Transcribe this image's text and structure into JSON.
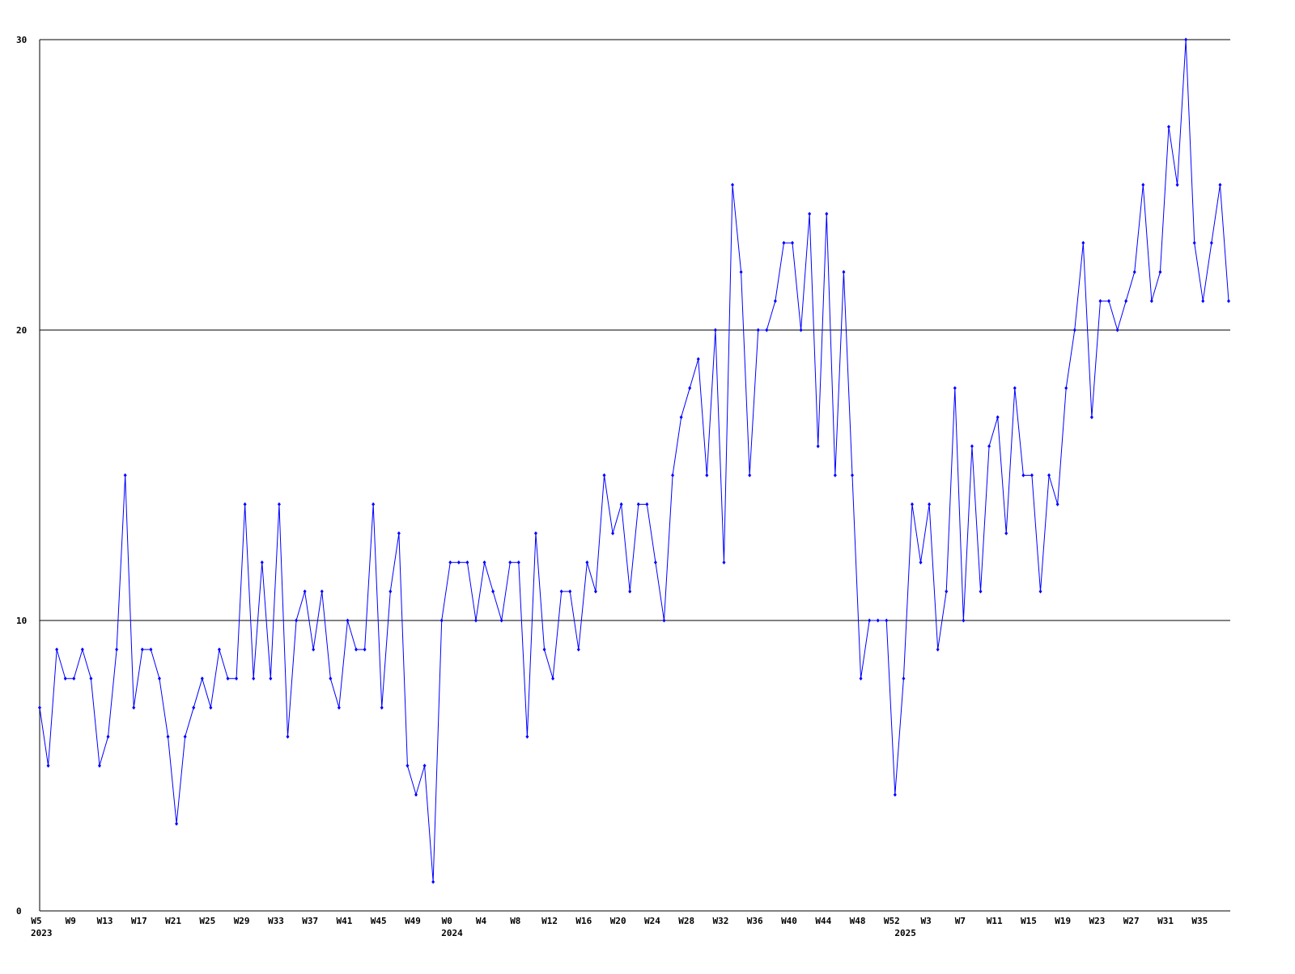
{
  "chart_data": {
    "type": "line",
    "categories": [
      "W5",
      null,
      null,
      null,
      "W9",
      null,
      null,
      null,
      "W13",
      null,
      null,
      null,
      "W17",
      null,
      null,
      null,
      "W21",
      null,
      null,
      null,
      "W25",
      null,
      null,
      null,
      "W29",
      null,
      null,
      null,
      "W33",
      null,
      null,
      null,
      "W37",
      null,
      null,
      null,
      "W41",
      null,
      null,
      null,
      "W45",
      null,
      null,
      null,
      "W49",
      null,
      null,
      null,
      "W0",
      null,
      null,
      null,
      "W4",
      null,
      null,
      null,
      "W8",
      null,
      null,
      null,
      "W12",
      null,
      null,
      null,
      "W16",
      null,
      null,
      null,
      "W20",
      null,
      null,
      null,
      "W24",
      null,
      null,
      null,
      "W28",
      null,
      null,
      null,
      "W32",
      null,
      null,
      null,
      "W36",
      null,
      null,
      null,
      "W40",
      null,
      null,
      null,
      "W44",
      null,
      null,
      null,
      "W48",
      null,
      null,
      null,
      "W52",
      null,
      null,
      null,
      "W3",
      null,
      null,
      null,
      "W7",
      null,
      null,
      null,
      "W11",
      null,
      null,
      null,
      "W15",
      null,
      null,
      null,
      "W19",
      null,
      null,
      null,
      "W23",
      null,
      null,
      null,
      "W27",
      null,
      null,
      null,
      "W31",
      null,
      null,
      null,
      "W35",
      null,
      null,
      null
    ],
    "x_year_labels": [
      "2023",
      null,
      null,
      null,
      null,
      null,
      null,
      null,
      null,
      null,
      null,
      null,
      null,
      null,
      null,
      null,
      null,
      null,
      null,
      null,
      null,
      null,
      null,
      null,
      null,
      null,
      null,
      null,
      null,
      null,
      null,
      null,
      null,
      null,
      null,
      null,
      null,
      null,
      null,
      null,
      null,
      null,
      null,
      null,
      null,
      null,
      null,
      null,
      "2024",
      null,
      null,
      null,
      null,
      null,
      null,
      null,
      null,
      null,
      null,
      null,
      null,
      null,
      null,
      null,
      null,
      null,
      null,
      null,
      null,
      null,
      null,
      null,
      null,
      null,
      null,
      null,
      null,
      null,
      null,
      null,
      null,
      null,
      null,
      null,
      null,
      null,
      null,
      null,
      null,
      null,
      null,
      null,
      null,
      null,
      null,
      null,
      null,
      null,
      null,
      null,
      null,
      "2025",
      null,
      null,
      null,
      null,
      null,
      null,
      null,
      null,
      null,
      null,
      null,
      null,
      null,
      null,
      null,
      null,
      null,
      null,
      null,
      null,
      null,
      null,
      null,
      null,
      null,
      null,
      null,
      null,
      null,
      null,
      null,
      null,
      null,
      null,
      null,
      null,
      null,
      null
    ],
    "series": [
      {
        "color": "#0000ff",
        "values": [
          7,
          5,
          9,
          8,
          8,
          9,
          8,
          5,
          6,
          9,
          15,
          7,
          9,
          9,
          8,
          6,
          3,
          6,
          7,
          8,
          7,
          9,
          8,
          8,
          14,
          8,
          12,
          8,
          14,
          6,
          10,
          11,
          9,
          11,
          8,
          7,
          10,
          9,
          9,
          14,
          7,
          11,
          13,
          5,
          4,
          5,
          1,
          10,
          12,
          12,
          12,
          10,
          12,
          11,
          10,
          12,
          12,
          6,
          13,
          9,
          8,
          11,
          11,
          9,
          12,
          11,
          15,
          13,
          14,
          11,
          14,
          14,
          12,
          10,
          15,
          17,
          18,
          19,
          15,
          20,
          12,
          25,
          22,
          15,
          20,
          20,
          21,
          23,
          23,
          20,
          24,
          16,
          24,
          15,
          22,
          15,
          8,
          10,
          10,
          10,
          4,
          8,
          14,
          12,
          14,
          9,
          11,
          18,
          10,
          16,
          11,
          16,
          17,
          13,
          18,
          15,
          15,
          11,
          15,
          14,
          18,
          20,
          23,
          17,
          21,
          21,
          20,
          21,
          22,
          25,
          21,
          22,
          27,
          25,
          30,
          23,
          21,
          23,
          25,
          21
        ]
      }
    ],
    "ylim": [
      0,
      30
    ],
    "yticks": [
      0,
      10,
      20,
      30
    ],
    "grid": true
  }
}
